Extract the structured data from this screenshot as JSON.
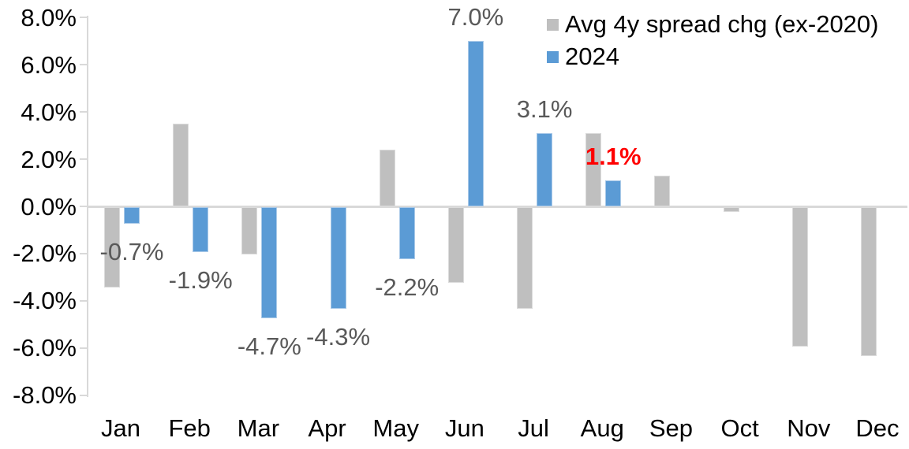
{
  "chart_data": {
    "type": "bar",
    "title": "",
    "categories": [
      "Jan",
      "Feb",
      "Mar",
      "Apr",
      "May",
      "Jun",
      "Jul",
      "Aug",
      "Sep",
      "Oct",
      "Nov",
      "Dec"
    ],
    "series": [
      {
        "name": "Avg 4y spread chg (ex-2020)",
        "color": "#BFBFBF",
        "border_color": "#DBDBDB",
        "values": [
          -3.4,
          3.5,
          -2.0,
          0.0,
          2.4,
          -3.2,
          -4.3,
          3.1,
          1.3,
          -0.2,
          -5.9,
          -6.3
        ]
      },
      {
        "name": "2024",
        "color": "#5B9BD5",
        "border_color": "#A9C9E8",
        "values": [
          -0.7,
          -1.9,
          -4.7,
          -4.3,
          -2.2,
          7.0,
          3.1,
          1.1,
          null,
          null,
          null,
          null
        ]
      }
    ],
    "data_labels": [
      {
        "month_index": 0,
        "text": "-0.7%",
        "color": "#595959",
        "bold": false
      },
      {
        "month_index": 1,
        "text": "-1.9%",
        "color": "#595959",
        "bold": false
      },
      {
        "month_index": 2,
        "text": "-4.7%",
        "color": "#595959",
        "bold": false
      },
      {
        "month_index": 3,
        "text": "-4.3%",
        "color": "#595959",
        "bold": false
      },
      {
        "month_index": 4,
        "text": "-2.2%",
        "color": "#595959",
        "bold": false
      },
      {
        "month_index": 5,
        "text": "7.0%",
        "color": "#595959",
        "bold": false
      },
      {
        "month_index": 6,
        "text": "3.1%",
        "color": "#595959",
        "bold": false
      },
      {
        "month_index": 7,
        "text": "1.1%",
        "color": "#FF0000",
        "bold": true
      }
    ],
    "ylim": [
      -8,
      8
    ],
    "ytick_labels": [
      "8.0%",
      "6.0%",
      "4.0%",
      "2.0%",
      "0.0%",
      "-2.0%",
      "-4.0%",
      "-6.0%",
      "-8.0%"
    ],
    "ytick_values": [
      8,
      6,
      4,
      2,
      0,
      -2,
      -4,
      -6,
      -8
    ],
    "grid": "zero-line-only",
    "legend_position": "top-right",
    "axis_color": "#D9D9D9",
    "text_color": "#000000"
  }
}
